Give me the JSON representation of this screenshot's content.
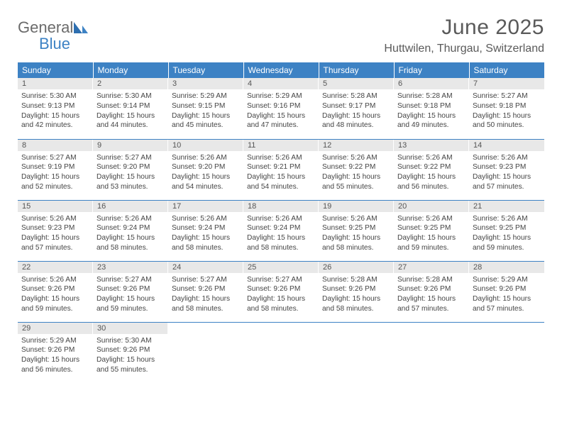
{
  "logo": {
    "word1": "General",
    "word2": "Blue"
  },
  "header": {
    "title": "June 2025",
    "location": "Huttwilen, Thurgau, Switzerland"
  },
  "colors": {
    "header_bg": "#3d82c4",
    "header_text": "#ffffff",
    "daynum_bg": "#e8e8e8",
    "text": "#444444",
    "rule": "#3d82c4",
    "logo_gray": "#6b6b6b",
    "logo_blue": "#3d82c4"
  },
  "calendar": {
    "type": "table",
    "columns": [
      "Sunday",
      "Monday",
      "Tuesday",
      "Wednesday",
      "Thursday",
      "Friday",
      "Saturday"
    ],
    "weeks": [
      [
        {
          "n": "1",
          "sr": "Sunrise: 5:30 AM",
          "ss": "Sunset: 9:13 PM",
          "d1": "Daylight: 15 hours",
          "d2": "and 42 minutes."
        },
        {
          "n": "2",
          "sr": "Sunrise: 5:30 AM",
          "ss": "Sunset: 9:14 PM",
          "d1": "Daylight: 15 hours",
          "d2": "and 44 minutes."
        },
        {
          "n": "3",
          "sr": "Sunrise: 5:29 AM",
          "ss": "Sunset: 9:15 PM",
          "d1": "Daylight: 15 hours",
          "d2": "and 45 minutes."
        },
        {
          "n": "4",
          "sr": "Sunrise: 5:29 AM",
          "ss": "Sunset: 9:16 PM",
          "d1": "Daylight: 15 hours",
          "d2": "and 47 minutes."
        },
        {
          "n": "5",
          "sr": "Sunrise: 5:28 AM",
          "ss": "Sunset: 9:17 PM",
          "d1": "Daylight: 15 hours",
          "d2": "and 48 minutes."
        },
        {
          "n": "6",
          "sr": "Sunrise: 5:28 AM",
          "ss": "Sunset: 9:18 PM",
          "d1": "Daylight: 15 hours",
          "d2": "and 49 minutes."
        },
        {
          "n": "7",
          "sr": "Sunrise: 5:27 AM",
          "ss": "Sunset: 9:18 PM",
          "d1": "Daylight: 15 hours",
          "d2": "and 50 minutes."
        }
      ],
      [
        {
          "n": "8",
          "sr": "Sunrise: 5:27 AM",
          "ss": "Sunset: 9:19 PM",
          "d1": "Daylight: 15 hours",
          "d2": "and 52 minutes."
        },
        {
          "n": "9",
          "sr": "Sunrise: 5:27 AM",
          "ss": "Sunset: 9:20 PM",
          "d1": "Daylight: 15 hours",
          "d2": "and 53 minutes."
        },
        {
          "n": "10",
          "sr": "Sunrise: 5:26 AM",
          "ss": "Sunset: 9:20 PM",
          "d1": "Daylight: 15 hours",
          "d2": "and 54 minutes."
        },
        {
          "n": "11",
          "sr": "Sunrise: 5:26 AM",
          "ss": "Sunset: 9:21 PM",
          "d1": "Daylight: 15 hours",
          "d2": "and 54 minutes."
        },
        {
          "n": "12",
          "sr": "Sunrise: 5:26 AM",
          "ss": "Sunset: 9:22 PM",
          "d1": "Daylight: 15 hours",
          "d2": "and 55 minutes."
        },
        {
          "n": "13",
          "sr": "Sunrise: 5:26 AM",
          "ss": "Sunset: 9:22 PM",
          "d1": "Daylight: 15 hours",
          "d2": "and 56 minutes."
        },
        {
          "n": "14",
          "sr": "Sunrise: 5:26 AM",
          "ss": "Sunset: 9:23 PM",
          "d1": "Daylight: 15 hours",
          "d2": "and 57 minutes."
        }
      ],
      [
        {
          "n": "15",
          "sr": "Sunrise: 5:26 AM",
          "ss": "Sunset: 9:23 PM",
          "d1": "Daylight: 15 hours",
          "d2": "and 57 minutes."
        },
        {
          "n": "16",
          "sr": "Sunrise: 5:26 AM",
          "ss": "Sunset: 9:24 PM",
          "d1": "Daylight: 15 hours",
          "d2": "and 58 minutes."
        },
        {
          "n": "17",
          "sr": "Sunrise: 5:26 AM",
          "ss": "Sunset: 9:24 PM",
          "d1": "Daylight: 15 hours",
          "d2": "and 58 minutes."
        },
        {
          "n": "18",
          "sr": "Sunrise: 5:26 AM",
          "ss": "Sunset: 9:24 PM",
          "d1": "Daylight: 15 hours",
          "d2": "and 58 minutes."
        },
        {
          "n": "19",
          "sr": "Sunrise: 5:26 AM",
          "ss": "Sunset: 9:25 PM",
          "d1": "Daylight: 15 hours",
          "d2": "and 58 minutes."
        },
        {
          "n": "20",
          "sr": "Sunrise: 5:26 AM",
          "ss": "Sunset: 9:25 PM",
          "d1": "Daylight: 15 hours",
          "d2": "and 59 minutes."
        },
        {
          "n": "21",
          "sr": "Sunrise: 5:26 AM",
          "ss": "Sunset: 9:25 PM",
          "d1": "Daylight: 15 hours",
          "d2": "and 59 minutes."
        }
      ],
      [
        {
          "n": "22",
          "sr": "Sunrise: 5:26 AM",
          "ss": "Sunset: 9:26 PM",
          "d1": "Daylight: 15 hours",
          "d2": "and 59 minutes."
        },
        {
          "n": "23",
          "sr": "Sunrise: 5:27 AM",
          "ss": "Sunset: 9:26 PM",
          "d1": "Daylight: 15 hours",
          "d2": "and 59 minutes."
        },
        {
          "n": "24",
          "sr": "Sunrise: 5:27 AM",
          "ss": "Sunset: 9:26 PM",
          "d1": "Daylight: 15 hours",
          "d2": "and 58 minutes."
        },
        {
          "n": "25",
          "sr": "Sunrise: 5:27 AM",
          "ss": "Sunset: 9:26 PM",
          "d1": "Daylight: 15 hours",
          "d2": "and 58 minutes."
        },
        {
          "n": "26",
          "sr": "Sunrise: 5:28 AM",
          "ss": "Sunset: 9:26 PM",
          "d1": "Daylight: 15 hours",
          "d2": "and 58 minutes."
        },
        {
          "n": "27",
          "sr": "Sunrise: 5:28 AM",
          "ss": "Sunset: 9:26 PM",
          "d1": "Daylight: 15 hours",
          "d2": "and 57 minutes."
        },
        {
          "n": "28",
          "sr": "Sunrise: 5:29 AM",
          "ss": "Sunset: 9:26 PM",
          "d1": "Daylight: 15 hours",
          "d2": "and 57 minutes."
        }
      ],
      [
        {
          "n": "29",
          "sr": "Sunrise: 5:29 AM",
          "ss": "Sunset: 9:26 PM",
          "d1": "Daylight: 15 hours",
          "d2": "and 56 minutes."
        },
        {
          "n": "30",
          "sr": "Sunrise: 5:30 AM",
          "ss": "Sunset: 9:26 PM",
          "d1": "Daylight: 15 hours",
          "d2": "and 55 minutes."
        },
        null,
        null,
        null,
        null,
        null
      ]
    ]
  }
}
